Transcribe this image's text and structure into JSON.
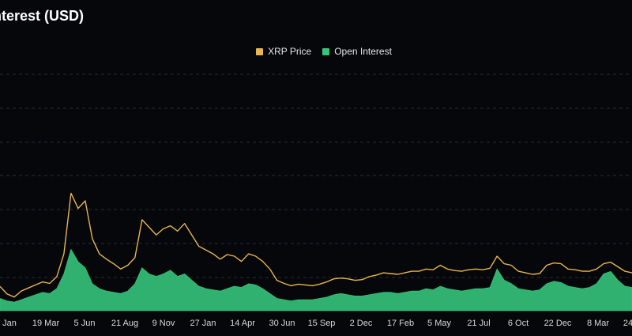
{
  "title": "Interest (USD)",
  "legend": {
    "price_label": "XRP Price",
    "oi_label": "Open Interest"
  },
  "colors": {
    "background": "#06070b",
    "price": "#e8b64c",
    "open_interest": "#35c47a",
    "grid": "#2a2d33"
  },
  "chart_data": {
    "type": "line",
    "title": "Interest (USD)",
    "xlabel": "",
    "ylabel": "",
    "grid": true,
    "legend_position": "top-center",
    "x_ticks": [
      "Jan",
      "19 Mar",
      "5 Jun",
      "21 Aug",
      "9 Nov",
      "27 Jan",
      "14 Apr",
      "30 Jun",
      "15 Sep",
      "2 Dec",
      "17 Feb",
      "5 May",
      "21 Jul",
      "6 Oct",
      "22 Dec",
      "8 Mar",
      "24"
    ],
    "series": [
      {
        "name": "XRP Price",
        "type": "line",
        "values": [
          0.32,
          0.22,
          0.18,
          0.26,
          0.3,
          0.34,
          0.38,
          0.36,
          0.45,
          0.75,
          1.55,
          1.35,
          1.45,
          0.95,
          0.75,
          0.68,
          0.62,
          0.55,
          0.6,
          0.7,
          1.2,
          1.1,
          1.0,
          1.08,
          1.12,
          1.05,
          1.15,
          1.0,
          0.85,
          0.8,
          0.75,
          0.68,
          0.74,
          0.72,
          0.65,
          0.75,
          0.72,
          0.65,
          0.55,
          0.4,
          0.36,
          0.33,
          0.35,
          0.34,
          0.33,
          0.35,
          0.38,
          0.42,
          0.43,
          0.42,
          0.4,
          0.41,
          0.45,
          0.47,
          0.5,
          0.49,
          0.48,
          0.5,
          0.52,
          0.52,
          0.55,
          0.54,
          0.6,
          0.55,
          0.53,
          0.52,
          0.54,
          0.55,
          0.54,
          0.56,
          0.72,
          0.62,
          0.6,
          0.52,
          0.5,
          0.48,
          0.49,
          0.6,
          0.63,
          0.62,
          0.55,
          0.54,
          0.52,
          0.52,
          0.55,
          0.62,
          0.64,
          0.58,
          0.52,
          0.5
        ]
      },
      {
        "name": "Open Interest",
        "type": "area",
        "values": [
          0.1,
          0.08,
          0.07,
          0.09,
          0.11,
          0.13,
          0.15,
          0.14,
          0.18,
          0.3,
          0.5,
          0.4,
          0.35,
          0.22,
          0.18,
          0.16,
          0.15,
          0.14,
          0.16,
          0.22,
          0.35,
          0.3,
          0.28,
          0.3,
          0.33,
          0.28,
          0.3,
          0.25,
          0.2,
          0.18,
          0.17,
          0.16,
          0.18,
          0.2,
          0.19,
          0.22,
          0.21,
          0.18,
          0.14,
          0.1,
          0.09,
          0.08,
          0.09,
          0.09,
          0.09,
          0.1,
          0.11,
          0.13,
          0.14,
          0.13,
          0.12,
          0.12,
          0.13,
          0.14,
          0.15,
          0.15,
          0.14,
          0.15,
          0.16,
          0.16,
          0.18,
          0.17,
          0.2,
          0.18,
          0.17,
          0.16,
          0.17,
          0.18,
          0.18,
          0.19,
          0.34,
          0.25,
          0.22,
          0.18,
          0.17,
          0.16,
          0.17,
          0.22,
          0.24,
          0.23,
          0.2,
          0.19,
          0.18,
          0.19,
          0.22,
          0.3,
          0.32,
          0.25,
          0.2,
          0.19
        ]
      }
    ]
  }
}
